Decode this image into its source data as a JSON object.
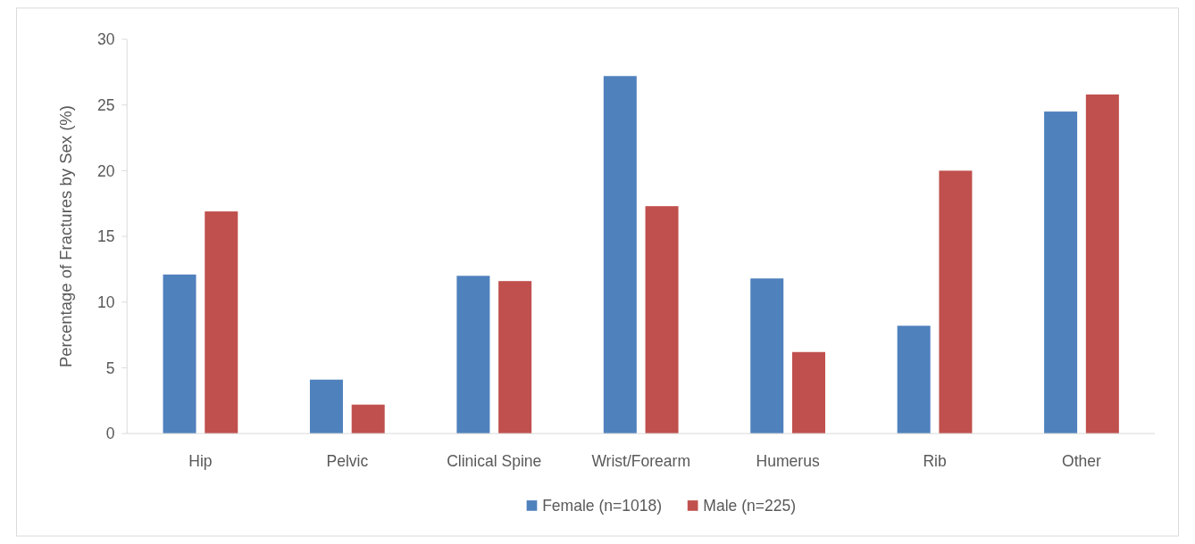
{
  "chart_data": {
    "type": "bar",
    "ylabel": "Percentage of Fractures by Sex (%)",
    "categories": [
      "Hip",
      "Pelvic",
      "Clinical Spine",
      "Wrist/Forearm",
      "Humerus",
      "Rib",
      "Other"
    ],
    "series": [
      {
        "name": "Female (n=1018)",
        "color": "#4f81bd",
        "values": [
          12.1,
          4.1,
          12.0,
          27.2,
          11.8,
          8.2,
          24.5
        ]
      },
      {
        "name": "Male (n=225)",
        "color": "#c0504d",
        "values": [
          16.9,
          2.2,
          11.6,
          17.3,
          6.2,
          20.0,
          25.8
        ]
      }
    ],
    "ylim": [
      0,
      30
    ],
    "yticks": [
      0,
      5,
      10,
      15,
      20,
      25,
      30
    ],
    "grid": false,
    "legend": "bottom"
  }
}
